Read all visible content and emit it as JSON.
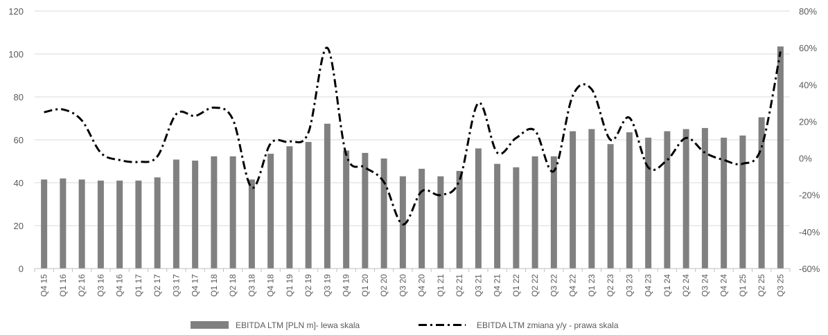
{
  "chart_data": {
    "type": "bar",
    "categories": [
      "Q4 15",
      "Q1 16",
      "Q2 16",
      "Q3 16",
      "Q4 16",
      "Q1 17",
      "Q2 17",
      "Q3 17",
      "Q4 17",
      "Q1 18",
      "Q2 18",
      "Q3 18",
      "Q4 18",
      "Q1 19",
      "Q2 19",
      "Q3 19",
      "Q4 19",
      "Q1 20",
      "Q2 20",
      "Q3 20",
      "Q4 20",
      "Q1 21",
      "Q2 21",
      "Q3 21",
      "Q4 21",
      "Q1 22",
      "Q2 22",
      "Q3 22",
      "Q4 22",
      "Q1 23",
      "Q2 23",
      "Q3 23",
      "Q4 23",
      "Q1 24",
      "Q2 24",
      "Q3 24",
      "Q4 24",
      "Q1 25",
      "Q2 25",
      "Q3 25"
    ],
    "series": [
      {
        "name": "EBITDA LTM [PLN m]- lewa skala",
        "type": "bar",
        "axis": "left",
        "color": "#808080",
        "values": [
          41.5,
          42,
          41.5,
          41,
          41,
          41,
          42.5,
          50.8,
          50.3,
          52.3,
          52.3,
          41.5,
          53.5,
          57,
          59,
          67.5,
          55,
          53.9,
          51.3,
          43,
          46.5,
          43,
          45.5,
          56,
          48.8,
          47.2,
          52.3,
          52.3,
          64,
          65,
          58,
          63.5,
          61,
          64,
          65,
          65.5,
          61,
          62,
          70.5,
          103.5
        ]
      },
      {
        "name": "EBITDA LTM zmiana y/y - prawa skala",
        "type": "line",
        "axis": "right",
        "style": "dash-dot",
        "color": "#000000",
        "values": [
          25,
          26.5,
          20.5,
          3,
          -1,
          -2,
          1,
          24,
          23,
          27.5,
          21,
          -16,
          8,
          9,
          14,
          60,
          2,
          -5,
          -13,
          -36,
          -18,
          -20,
          -12,
          30,
          3,
          11,
          15,
          -7,
          34,
          37.5,
          10,
          22,
          -5,
          -1,
          11,
          3,
          -1,
          -3,
          6,
          58
        ]
      }
    ],
    "y_left": {
      "ylim": [
        0,
        120
      ],
      "ticks": [
        0,
        20,
        40,
        60,
        80,
        100,
        120
      ]
    },
    "y_right": {
      "ylim": [
        -60,
        80
      ],
      "ticks": [
        "-60%",
        "-40%",
        "-20%",
        "0%",
        "20%",
        "40%",
        "60%",
        "80%"
      ]
    },
    "grid": true,
    "legend": {
      "position": "bottom",
      "entries": [
        "EBITDA LTM [PLN m]- lewa skala",
        "EBITDA LTM zmiana y/y - prawa skala"
      ]
    }
  }
}
